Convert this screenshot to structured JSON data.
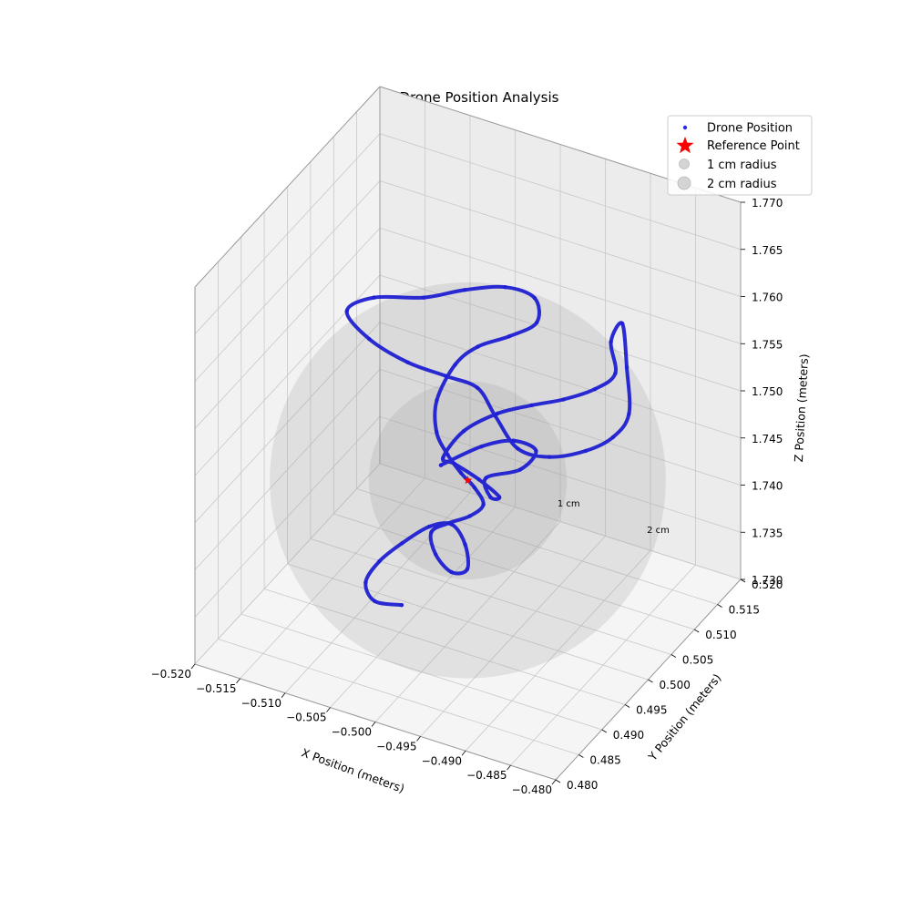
{
  "chart_data": {
    "type": "scatter3d",
    "title": "3D Drone Position Analysis",
    "xlabel": "X Position (meters)",
    "ylabel": "Y Position (meters)",
    "zlabel": "Z Position (meters)",
    "xlim": [
      -0.52,
      -0.48
    ],
    "ylim": [
      0.48,
      0.52
    ],
    "zlim": [
      1.73,
      1.77
    ],
    "xticks": [
      "-0.520",
      "-0.515",
      "-0.510",
      "-0.505",
      "-0.500",
      "-0.495",
      "-0.490",
      "-0.485",
      "-0.480"
    ],
    "yticks": [
      "0.480",
      "0.485",
      "0.490",
      "0.495",
      "0.500",
      "0.505",
      "0.510",
      "0.515",
      "0.520"
    ],
    "zticks": [
      "1.730",
      "1.735",
      "1.740",
      "1.745",
      "1.750",
      "1.755",
      "1.760",
      "1.765",
      "1.770"
    ],
    "grid": true,
    "legend_position": "top-right",
    "legend": [
      {
        "label": "Drone Position",
        "marker": "dot",
        "color": "#2b2bdc"
      },
      {
        "label": "Reference Point",
        "marker": "star",
        "color": "#ff0000"
      },
      {
        "label": "1 cm radius",
        "marker": "circle",
        "color": "#c8c8c8"
      },
      {
        "label": "2 cm radius",
        "marker": "circle",
        "color": "#c8c8c8"
      }
    ],
    "reference_point": {
      "x": -0.5,
      "y": 0.5,
      "z": 1.745
    },
    "spheres": [
      {
        "label": "1 cm",
        "radius_m": 0.01
      },
      {
        "label": "2 cm",
        "radius_m": 0.02
      }
    ],
    "trajectory_screen_approx_note": "",
    "series": [
      {
        "name": "Drone Position",
        "color": "#1a1ad0",
        "points": [
          [
            -0.5035,
            0.501,
            1.745
          ],
          [
            -0.5,
            0.503,
            1.747
          ],
          [
            -0.497,
            0.504,
            1.748
          ],
          [
            -0.495,
            0.505,
            1.747
          ],
          [
            -0.496,
            0.5035,
            1.7455
          ],
          [
            -0.499,
            0.502,
            1.7445
          ],
          [
            -0.4975,
            0.5,
            1.744
          ],
          [
            -0.496,
            0.499,
            1.745
          ],
          [
            -0.498,
            0.4985,
            1.7465
          ],
          [
            -0.501,
            0.499,
            1.747
          ],
          [
            -0.503,
            0.5005,
            1.7462
          ],
          [
            -0.502,
            0.503,
            1.748
          ],
          [
            -0.499,
            0.5045,
            1.75
          ],
          [
            -0.496,
            0.506,
            1.751
          ],
          [
            -0.493,
            0.507,
            1.752
          ],
          [
            -0.49,
            0.508,
            1.7535
          ],
          [
            -0.488,
            0.5085,
            1.7555
          ],
          [
            -0.489,
            0.5095,
            1.758
          ],
          [
            -0.488,
            0.51,
            1.76
          ],
          [
            -0.4875,
            0.51,
            1.7555
          ],
          [
            -0.487,
            0.5095,
            1.751
          ],
          [
            -0.488,
            0.508,
            1.749
          ],
          [
            -0.49,
            0.506,
            1.748
          ],
          [
            -0.493,
            0.504,
            1.7475
          ],
          [
            -0.496,
            0.503,
            1.748
          ],
          [
            -0.499,
            0.504,
            1.75
          ],
          [
            -0.502,
            0.506,
            1.751
          ],
          [
            -0.506,
            0.507,
            1.7505
          ],
          [
            -0.51,
            0.5065,
            1.751
          ],
          [
            -0.514,
            0.506,
            1.7525
          ],
          [
            -0.517,
            0.507,
            1.754
          ],
          [
            -0.515,
            0.509,
            1.755
          ],
          [
            -0.51,
            0.51,
            1.756
          ],
          [
            -0.506,
            0.511,
            1.7575
          ],
          [
            -0.502,
            0.512,
            1.7585
          ],
          [
            -0.499,
            0.5125,
            1.758
          ],
          [
            -0.498,
            0.511,
            1.7565
          ],
          [
            -0.5,
            0.509,
            1.7555
          ],
          [
            -0.503,
            0.508,
            1.754
          ],
          [
            -0.505,
            0.507,
            1.752
          ],
          [
            -0.506,
            0.505,
            1.749
          ],
          [
            -0.505,
            0.503,
            1.747
          ],
          [
            -0.503,
            0.5015,
            1.746
          ],
          [
            -0.501,
            0.5005,
            1.7452
          ],
          [
            -0.499,
            0.4995,
            1.7448
          ],
          [
            -0.4975,
            0.4985,
            1.744
          ],
          [
            -0.4985,
            0.4975,
            1.743
          ],
          [
            -0.5005,
            0.4968,
            1.742
          ],
          [
            -0.502,
            0.496,
            1.741
          ],
          [
            -0.501,
            0.495,
            1.7395
          ],
          [
            -0.499,
            0.4945,
            1.7385
          ],
          [
            -0.4975,
            0.495,
            1.739
          ],
          [
            -0.4985,
            0.4965,
            1.7405
          ],
          [
            -0.5005,
            0.4975,
            1.7415
          ],
          [
            -0.503,
            0.4975,
            1.7405
          ],
          [
            -0.5055,
            0.4965,
            1.7385
          ],
          [
            -0.5075,
            0.4955,
            1.7365
          ],
          [
            -0.5085,
            0.4945,
            1.7345
          ],
          [
            -0.507,
            0.4935,
            1.7335
          ],
          [
            -0.504,
            0.4935,
            1.734
          ]
        ]
      }
    ]
  }
}
